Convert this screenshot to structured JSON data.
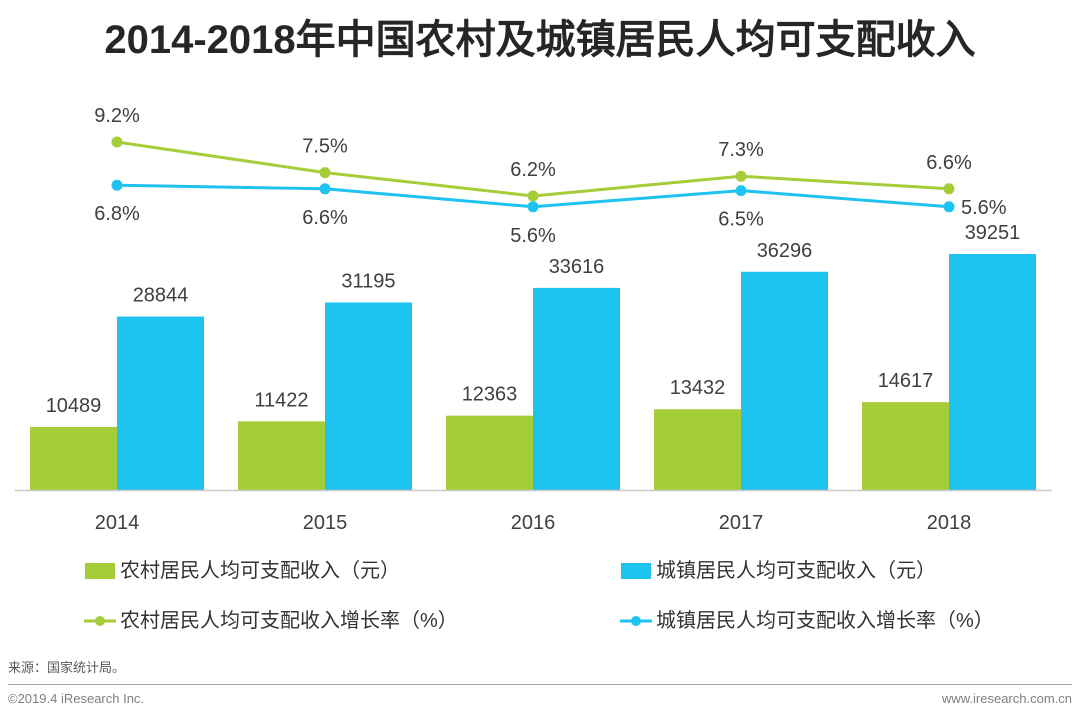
{
  "colors": {
    "axis": "#c9c9c9"
  },
  "chart_data": {
    "type": "bar",
    "title": "2014-2018年中国农村及城镇居民人均可支配收入",
    "xlabel": "",
    "ylabel": "",
    "grid": false,
    "legend_position": "bottom",
    "categories": [
      "2014",
      "2015",
      "2016",
      "2017",
      "2018"
    ],
    "series": [
      {
        "name": "农村居民人均可支配收入（元）",
        "type": "bar",
        "color": "#a5cd39",
        "values": [
          10489,
          11422,
          12363,
          13432,
          14617
        ],
        "labels": [
          "10489",
          "11422",
          "12363",
          "13432",
          "14617"
        ]
      },
      {
        "name": "城镇居民人均可支配收入（元）",
        "type": "bar",
        "color": "#1fc3ef",
        "values": [
          28844,
          31195,
          33616,
          36296,
          39251
        ],
        "labels": [
          "28844",
          "31195",
          "33616",
          "36296",
          "39251"
        ]
      },
      {
        "name": "农村居民人均可支配收入增长率（%）",
        "type": "line",
        "color": "#a5cd39",
        "values": [
          9.2,
          7.5,
          6.2,
          7.3,
          6.6
        ],
        "labels": [
          "9.2%",
          "7.5%",
          "6.2%",
          "7.3%",
          "6.6%"
        ]
      },
      {
        "name": "城镇居民人均可支配收入增长率（%）",
        "type": "line",
        "color": "#1fc3ef",
        "values": [
          6.8,
          6.6,
          5.6,
          6.5,
          5.6
        ],
        "labels": [
          "6.8%",
          "6.6%",
          "5.6%",
          "6.5%",
          "5.6%"
        ]
      }
    ]
  },
  "source": "来源：国家统计局。",
  "footer": {
    "copyright": "©2019.4 iResearch Inc.",
    "website": "www.iresearch.com.cn"
  }
}
